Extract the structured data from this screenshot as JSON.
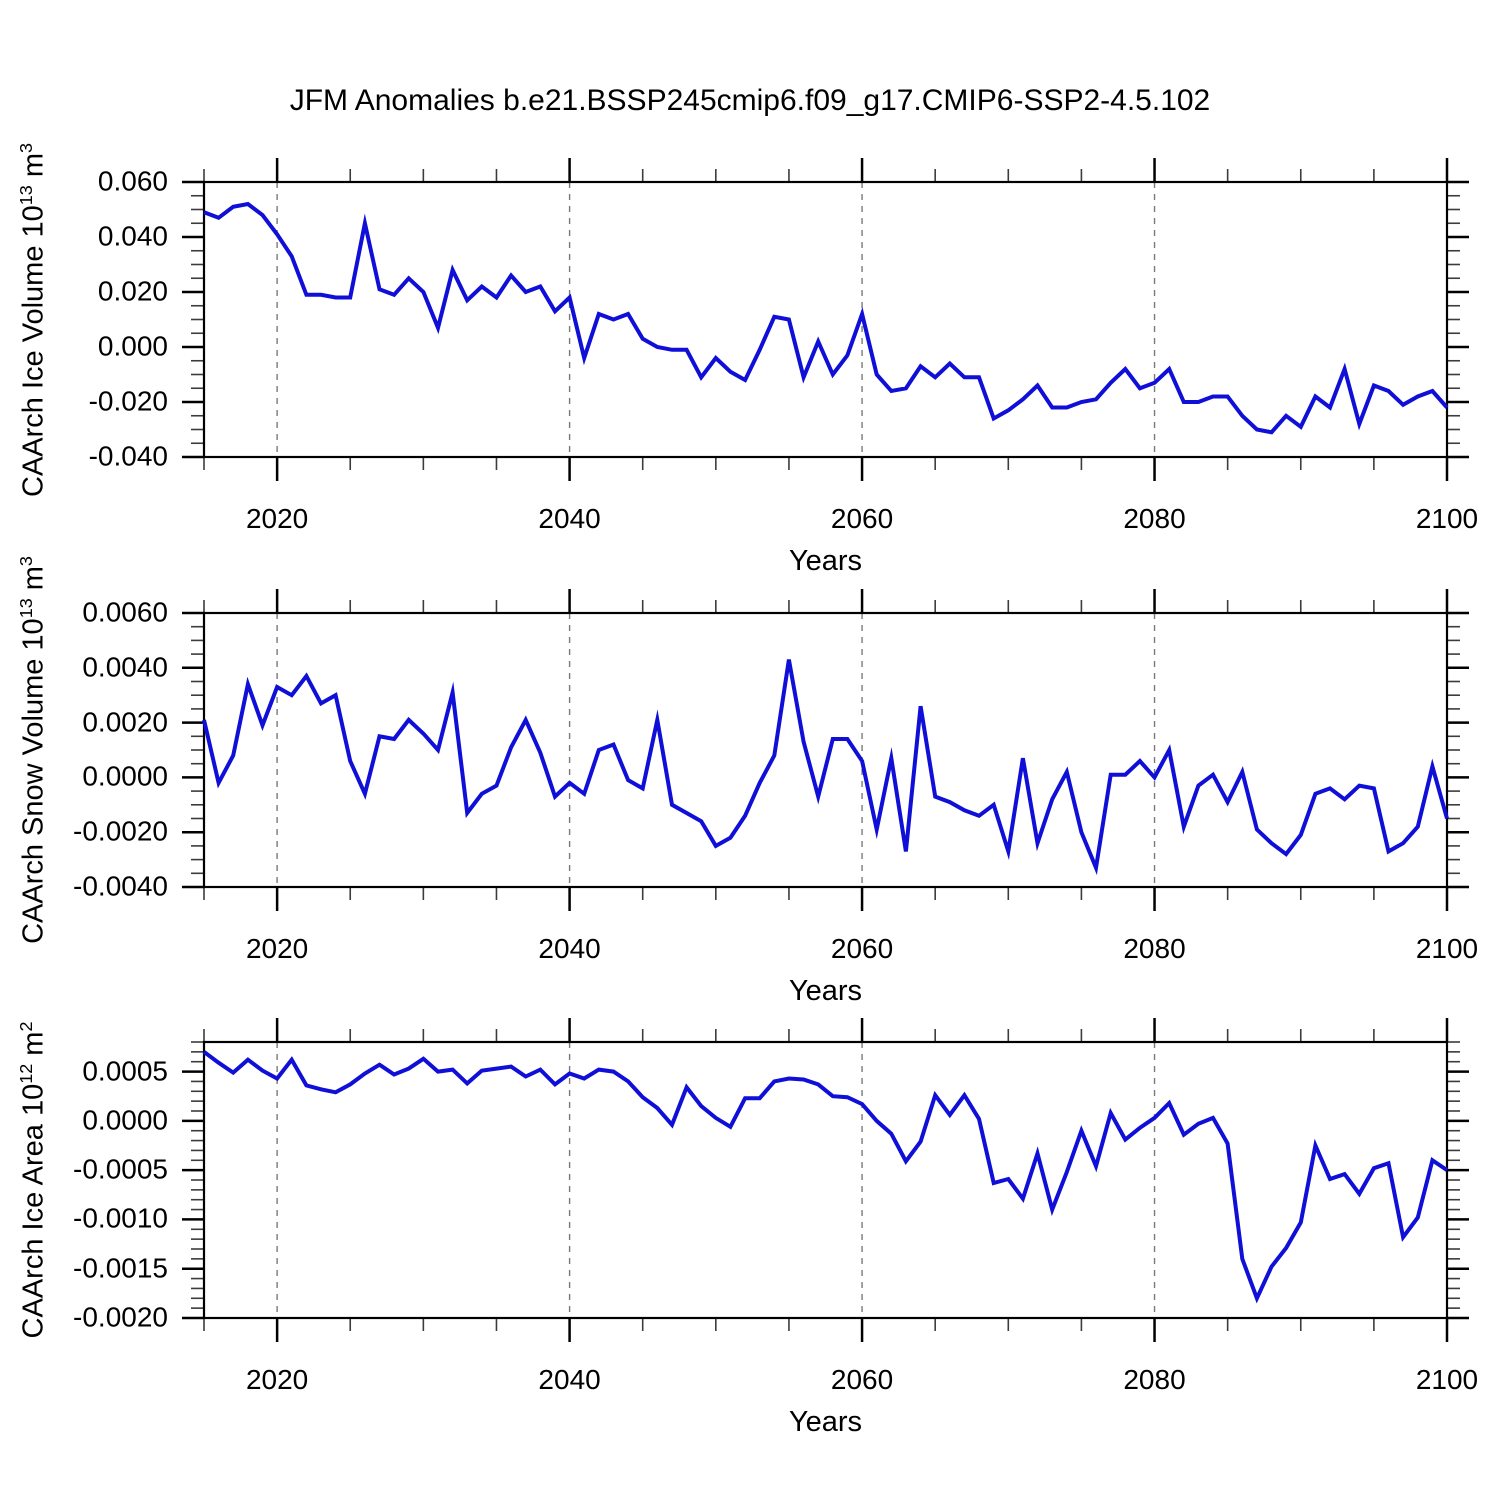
{
  "title": "JFM Anomalies b.e21.BSSP245cmip6.f09_g17.CMIP6-SSP2-4.5.102",
  "line_color": "#0f0fd8",
  "grid_color": "#7a7a7a",
  "axis_color": "#000000",
  "minor_tick_color": "#3c3c3c",
  "x_axis_label": "Years",
  "chart_data": [
    {
      "type": "line",
      "name": "caarch-ice-volume",
      "ylabel_parts": [
        {
          "t": "CAArch Ice Volume 10"
        },
        {
          "t": "13",
          "sup": true
        },
        {
          "t": " m"
        },
        {
          "t": "3",
          "sup": true
        }
      ],
      "xlabel": "Years",
      "xlim": [
        2015,
        2100
      ],
      "ylim": [
        -0.04,
        0.06
      ],
      "x_start": 2015,
      "x_step": 1,
      "x_ticks": [
        {
          "v": 2020,
          "label": "2020"
        },
        {
          "v": 2040,
          "label": "2040"
        },
        {
          "v": 2060,
          "label": "2060"
        },
        {
          "v": 2080,
          "label": "2080"
        },
        {
          "v": 2100,
          "label": "2100"
        }
      ],
      "x_minor_step": 5,
      "gridlines_x": [
        2020,
        2040,
        2060,
        2080
      ],
      "y_ticks": [
        {
          "v": 0.06,
          "label": "0.060"
        },
        {
          "v": 0.04,
          "label": "0.040"
        },
        {
          "v": 0.02,
          "label": "0.020"
        },
        {
          "v": 0.0,
          "label": "0.000"
        },
        {
          "v": -0.02,
          "label": "-0.020"
        },
        {
          "v": -0.04,
          "label": "-0.040"
        }
      ],
      "y_minor_step": 0.005,
      "values": [
        0.049,
        0.047,
        0.051,
        0.052,
        0.048,
        0.041,
        0.033,
        0.019,
        0.019,
        0.018,
        0.018,
        0.045,
        0.021,
        0.019,
        0.025,
        0.02,
        0.007,
        0.028,
        0.017,
        0.022,
        0.018,
        0.026,
        0.02,
        0.022,
        0.013,
        0.018,
        -0.004,
        0.012,
        0.01,
        0.012,
        0.003,
        0.0,
        -0.001,
        -0.001,
        -0.011,
        -0.004,
        -0.009,
        -0.012,
        -0.001,
        0.011,
        0.01,
        -0.011,
        0.002,
        -0.01,
        -0.003,
        0.012,
        -0.01,
        -0.016,
        -0.015,
        -0.007,
        -0.011,
        -0.006,
        -0.011,
        -0.011,
        -0.026,
        -0.023,
        -0.019,
        -0.014,
        -0.022,
        -0.022,
        -0.02,
        -0.019,
        -0.013,
        -0.008,
        -0.015,
        -0.013,
        -0.008,
        -0.02,
        -0.02,
        -0.018,
        -0.018,
        -0.025,
        -0.03,
        -0.031,
        -0.025,
        -0.029,
        -0.018,
        -0.022,
        -0.008,
        -0.028,
        -0.014,
        -0.016,
        -0.021,
        -0.018,
        -0.016,
        -0.022
      ]
    },
    {
      "type": "line",
      "name": "caarch-snow-volume",
      "ylabel_parts": [
        {
          "t": "CAArch Snow Volume 10"
        },
        {
          "t": "13",
          "sup": true
        },
        {
          "t": " m"
        },
        {
          "t": "3",
          "sup": true
        }
      ],
      "xlabel": "Years",
      "xlim": [
        2015,
        2100
      ],
      "ylim": [
        -0.004,
        0.006
      ],
      "x_start": 2015,
      "x_step": 1,
      "x_ticks": [
        {
          "v": 2020,
          "label": "2020"
        },
        {
          "v": 2040,
          "label": "2040"
        },
        {
          "v": 2060,
          "label": "2060"
        },
        {
          "v": 2080,
          "label": "2080"
        },
        {
          "v": 2100,
          "label": "2100"
        }
      ],
      "x_minor_step": 5,
      "gridlines_x": [
        2020,
        2040,
        2060,
        2080
      ],
      "y_ticks": [
        {
          "v": 0.006,
          "label": "0.0060"
        },
        {
          "v": 0.004,
          "label": "0.0040"
        },
        {
          "v": 0.002,
          "label": "0.0020"
        },
        {
          "v": 0.0,
          "label": "0.0000"
        },
        {
          "v": -0.002,
          "label": "-0.0020"
        },
        {
          "v": -0.004,
          "label": "-0.0040"
        }
      ],
      "y_minor_step": 0.0005,
      "values": [
        0.0021,
        -0.0002,
        0.0008,
        0.0034,
        0.0019,
        0.0033,
        0.003,
        0.0037,
        0.0027,
        0.003,
        0.0006,
        -0.0006,
        0.0015,
        0.0014,
        0.0021,
        0.0016,
        0.001,
        0.0031,
        -0.0013,
        -0.0006,
        -0.0003,
        0.0011,
        0.0021,
        0.0009,
        -0.0007,
        -0.0002,
        -0.0006,
        0.001,
        0.0012,
        -0.0001,
        -0.0004,
        0.0021,
        -0.001,
        -0.0013,
        -0.0016,
        -0.0025,
        -0.0022,
        -0.0014,
        -0.0002,
        0.0008,
        0.0043,
        0.0013,
        -0.0007,
        0.0014,
        0.0014,
        0.0006,
        -0.0019,
        0.0007,
        -0.0027,
        0.0026,
        -0.0007,
        -0.0009,
        -0.0012,
        -0.0014,
        -0.001,
        -0.0027,
        0.0007,
        -0.0024,
        -0.0008,
        0.0002,
        -0.002,
        -0.0033,
        0.0001,
        0.0001,
        0.0006,
        0.0,
        0.001,
        -0.0018,
        -0.0003,
        0.0001,
        -0.0009,
        0.0002,
        -0.0019,
        -0.0024,
        -0.0028,
        -0.0021,
        -0.0006,
        -0.0004,
        -0.0008,
        -0.0003,
        -0.0004,
        -0.0027,
        -0.0024,
        -0.0018,
        0.0004,
        -0.0015
      ]
    },
    {
      "type": "line",
      "name": "caarch-ice-area",
      "ylabel_parts": [
        {
          "t": "CAArch Ice Area 10"
        },
        {
          "t": "12",
          "sup": true
        },
        {
          "t": " m"
        },
        {
          "t": "2",
          "sup": true
        }
      ],
      "xlabel": "Years",
      "xlim": [
        2015,
        2100
      ],
      "ylim": [
        -0.002,
        0.0008
      ],
      "x_start": 2015,
      "x_step": 1,
      "x_ticks": [
        {
          "v": 2020,
          "label": "2020"
        },
        {
          "v": 2040,
          "label": "2040"
        },
        {
          "v": 2060,
          "label": "2060"
        },
        {
          "v": 2080,
          "label": "2080"
        },
        {
          "v": 2100,
          "label": "2100"
        }
      ],
      "x_minor_step": 5,
      "gridlines_x": [
        2020,
        2040,
        2060,
        2080
      ],
      "y_ticks": [
        {
          "v": 0.0005,
          "label": "0.0005"
        },
        {
          "v": 0.0,
          "label": "0.0000"
        },
        {
          "v": -0.0005,
          "label": "-0.0005"
        },
        {
          "v": -0.001,
          "label": "-0.0010"
        },
        {
          "v": -0.0015,
          "label": "-0.0015"
        },
        {
          "v": -0.002,
          "label": "-0.0020"
        }
      ],
      "y_minor_step": 0.0001,
      "values": [
        0.0007,
        0.00059,
        0.00049,
        0.00062,
        0.00051,
        0.00043,
        0.00062,
        0.00036,
        0.00032,
        0.00029,
        0.00037,
        0.00048,
        0.00057,
        0.00047,
        0.00053,
        0.00063,
        0.0005,
        0.00052,
        0.00038,
        0.00051,
        0.00053,
        0.00055,
        0.00045,
        0.00052,
        0.00037,
        0.00048,
        0.00043,
        0.00052,
        0.0005,
        0.0004,
        0.00024,
        0.00013,
        -4e-05,
        0.00034,
        0.00015,
        3e-05,
        -6e-05,
        0.00023,
        0.00023,
        0.0004,
        0.00043,
        0.00042,
        0.00037,
        0.00025,
        0.00024,
        0.00017,
        0.0,
        -0.00013,
        -0.00041,
        -0.00021,
        0.00026,
        6e-05,
        0.00026,
        2e-05,
        -0.00063,
        -0.00059,
        -0.00079,
        -0.00033,
        -0.0009,
        -0.00052,
        -0.0001,
        -0.00046,
        8e-05,
        -0.00019,
        -7e-05,
        3e-05,
        0.00018,
        -0.00014,
        -3e-05,
        3e-05,
        -0.00023,
        -0.0014,
        -0.0018,
        -0.00148,
        -0.00129,
        -0.00103,
        -0.00025,
        -0.00059,
        -0.00054,
        -0.00074,
        -0.00048,
        -0.00043,
        -0.00118,
        -0.00098,
        -0.0004,
        -0.0005
      ]
    }
  ]
}
